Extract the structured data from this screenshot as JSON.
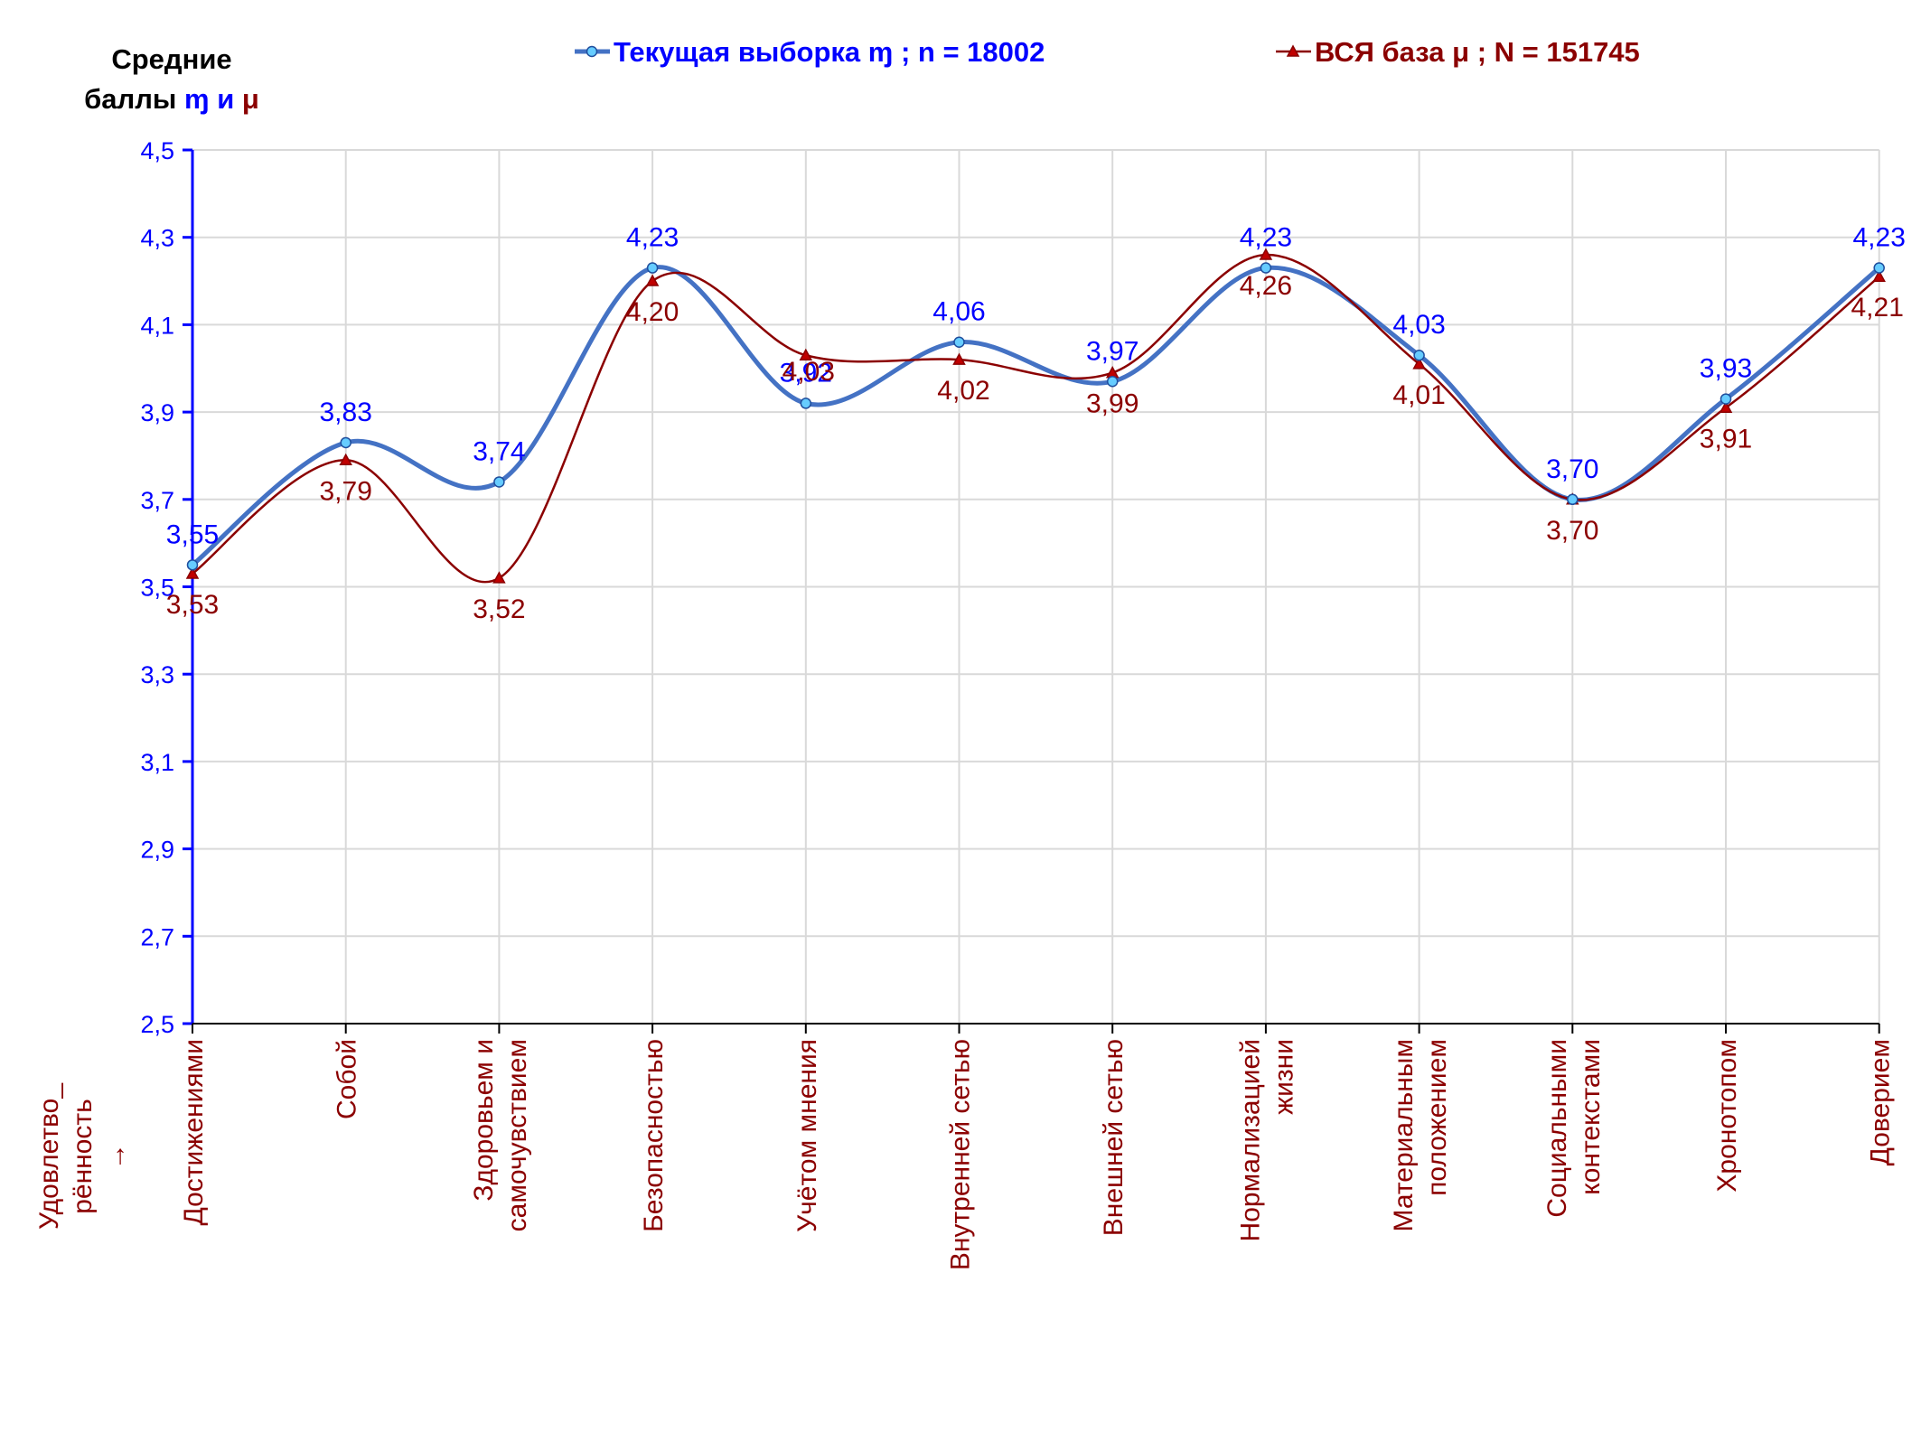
{
  "chart_data": {
    "type": "line",
    "title": "",
    "y_title_line1": "Средние",
    "y_title_line2": "баллы",
    "y_title_sym1": "ɱ",
    "y_title_and": "и",
    "y_title_sym2": "μ",
    "x_side_label_line1": "Удовлетво_",
    "x_side_label_line2": "рённость",
    "x_side_label_line3": "→",
    "ylim": [
      2.5,
      4.5
    ],
    "yticks": [
      "2,5",
      "2,7",
      "2,9",
      "3,1",
      "3,3",
      "3,5",
      "3,7",
      "3,9",
      "4,1",
      "4,3",
      "4,5"
    ],
    "grid": true,
    "legend_position": "top",
    "categories": [
      [
        "Достижениями"
      ],
      [
        "Собой"
      ],
      [
        "Здоровьем и",
        "самочувствием"
      ],
      [
        "Безопасностью"
      ],
      [
        "Учётом мнения"
      ],
      [
        "Внутренней сетью"
      ],
      [
        "Внешней сетью"
      ],
      [
        "Нормализацией",
        "жизни"
      ],
      [
        "Материальным",
        "положением"
      ],
      [
        "Социальными",
        "контекстами"
      ],
      [
        "Хронотопом"
      ],
      [
        "Доверием"
      ]
    ],
    "series": [
      {
        "name": "Текущая выборка ɱ ; n = 18002",
        "color": "#4472C4",
        "label_color": "#0000FF",
        "marker": "circle",
        "values": [
          3.55,
          3.83,
          3.74,
          4.23,
          3.92,
          4.06,
          3.97,
          4.23,
          4.03,
          3.7,
          3.93,
          4.23
        ],
        "labels": [
          "3,55",
          "3,83",
          "3,74",
          "4,23",
          "3,92",
          "4,06",
          "3,97",
          "4,23",
          "4,03",
          "3,70",
          "3,93",
          "4,23"
        ]
      },
      {
        "name": "ВСЯ база μ ; N = 151745",
        "color": "#8B0000",
        "label_color": "#8B0000",
        "marker": "triangle",
        "values": [
          3.53,
          3.79,
          3.52,
          4.2,
          4.03,
          4.02,
          3.99,
          4.26,
          4.01,
          3.7,
          3.91,
          4.21
        ],
        "labels": [
          "3,53",
          "3,79",
          "3,52",
          "4,20",
          "4,03",
          "4,02",
          "3,99",
          "4,26",
          "4,01",
          "3,70",
          "3,91",
          "4,21"
        ]
      }
    ],
    "colors": {
      "axis": "#0000FF",
      "tick_label": "#0000FF",
      "category_label": "#8B0000",
      "grid": "#D9D9D9"
    }
  }
}
